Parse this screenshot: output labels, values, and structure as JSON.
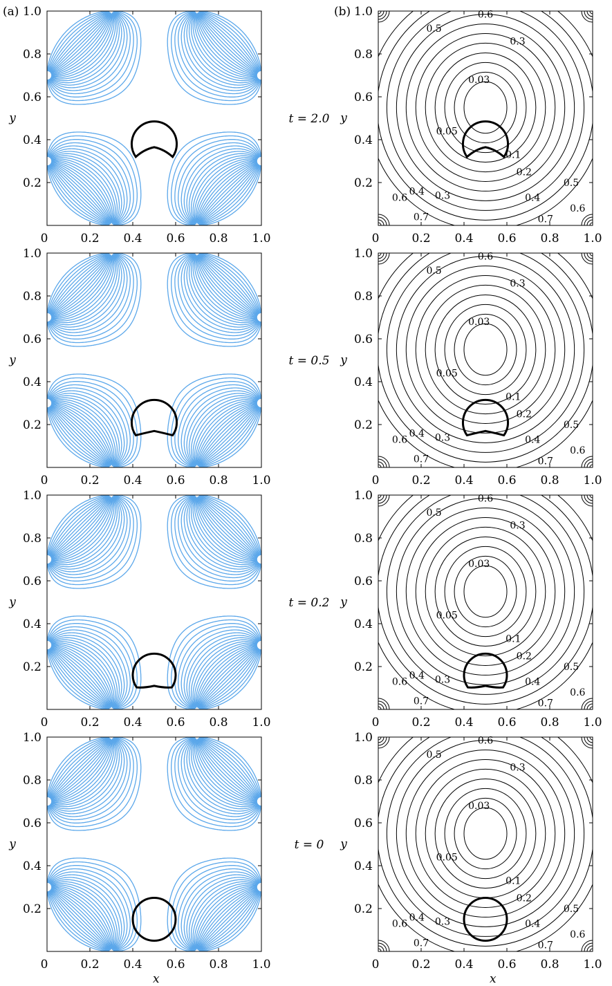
{
  "figure": {
    "panel_labels": [
      "(a)",
      "(b)"
    ],
    "xlabel": "x",
    "ylabel": "y",
    "tick_labels": [
      "0",
      "0.2",
      "0.4",
      "0.6",
      "0.8",
      "1.0"
    ],
    "colors": {
      "streamline": "#5ba7ea",
      "contour": "#000000",
      "interface": "#000000"
    }
  },
  "chart_data": [
    {
      "type": "streamlines",
      "panel": "(a)",
      "t_label": "t = 2.0",
      "xlim": [
        0,
        1
      ],
      "ylim": [
        0,
        1
      ],
      "grid": false,
      "drop": {
        "center": [
          0.5,
          0.38
        ],
        "radius": 0.105,
        "inner_dip": [
          0.5,
          0.365
        ]
      }
    },
    {
      "type": "contour",
      "panel": "(b)",
      "t_label": "t = 2.0",
      "xlim": [
        0,
        1
      ],
      "ylim": [
        0,
        1
      ],
      "contour_labels": [
        "0.6",
        "0.5",
        "0.3",
        "0.03",
        "0.05",
        "0.1",
        "0.2",
        "0.5",
        "0.6",
        "0.4",
        "0.3",
        "0.4",
        "0.6",
        "0.7",
        "0.7"
      ],
      "drop": {
        "center": [
          0.5,
          0.38
        ],
        "radius": 0.105,
        "inner_dip": [
          0.5,
          0.365
        ]
      }
    },
    {
      "type": "streamlines",
      "panel": "(a)",
      "t_label": "t = 0.5",
      "xlim": [
        0,
        1
      ],
      "ylim": [
        0,
        1
      ],
      "grid": false,
      "drop": {
        "center": [
          0.5,
          0.21
        ],
        "radius": 0.105,
        "inner_dip": [
          0.5,
          0.17
        ]
      }
    },
    {
      "type": "contour",
      "panel": "(b)",
      "t_label": "t = 0.5",
      "xlim": [
        0,
        1
      ],
      "ylim": [
        0,
        1
      ],
      "contour_labels": [
        "0.6",
        "0.5",
        "0.3",
        "0.03",
        "0.05",
        "0.1",
        "0.2",
        "0.5",
        "0.6",
        "0.4",
        "0.3",
        "0.4",
        "0.6",
        "0.7",
        "0.7"
      ],
      "drop": {
        "center": [
          0.5,
          0.21
        ],
        "radius": 0.105,
        "inner_dip": [
          0.5,
          0.17
        ]
      }
    },
    {
      "type": "streamlines",
      "panel": "(a)",
      "t_label": "t = 0.2",
      "xlim": [
        0,
        1
      ],
      "ylim": [
        0,
        1
      ],
      "grid": false,
      "drop": {
        "center": [
          0.5,
          0.16
        ],
        "radius": 0.1,
        "inner_dip": [
          0.5,
          0.11
        ]
      }
    },
    {
      "type": "contour",
      "panel": "(b)",
      "t_label": "t = 0.2",
      "xlim": [
        0,
        1
      ],
      "ylim": [
        0,
        1
      ],
      "contour_labels": [
        "0.6",
        "0.5",
        "0.3",
        "0.03",
        "0.05",
        "0.1",
        "0.2",
        "0.5",
        "0.6",
        "0.4",
        "0.3",
        "0.4",
        "0.6",
        "0.7",
        "0.7"
      ],
      "drop": {
        "center": [
          0.5,
          0.16
        ],
        "radius": 0.1,
        "inner_dip": [
          0.5,
          0.11
        ]
      }
    },
    {
      "type": "streamlines",
      "panel": "(a)",
      "t_label": "t = 0",
      "xlim": [
        0,
        1
      ],
      "ylim": [
        0,
        1
      ],
      "grid": false,
      "drop": {
        "center": [
          0.5,
          0.15
        ],
        "radius": 0.1,
        "inner_dip": null
      }
    },
    {
      "type": "contour",
      "panel": "(b)",
      "t_label": "t = 0",
      "xlim": [
        0,
        1
      ],
      "ylim": [
        0,
        1
      ],
      "contour_labels": [
        "0.6",
        "0.5",
        "0.3",
        "0.03",
        "0.05",
        "0.1",
        "0.2",
        "0.5",
        "0.6",
        "0.4",
        "0.3",
        "0.4",
        "0.6",
        "0.7",
        "0.7"
      ],
      "drop": {
        "center": [
          0.5,
          0.15
        ],
        "radius": 0.1,
        "inner_dip": null
      }
    }
  ]
}
